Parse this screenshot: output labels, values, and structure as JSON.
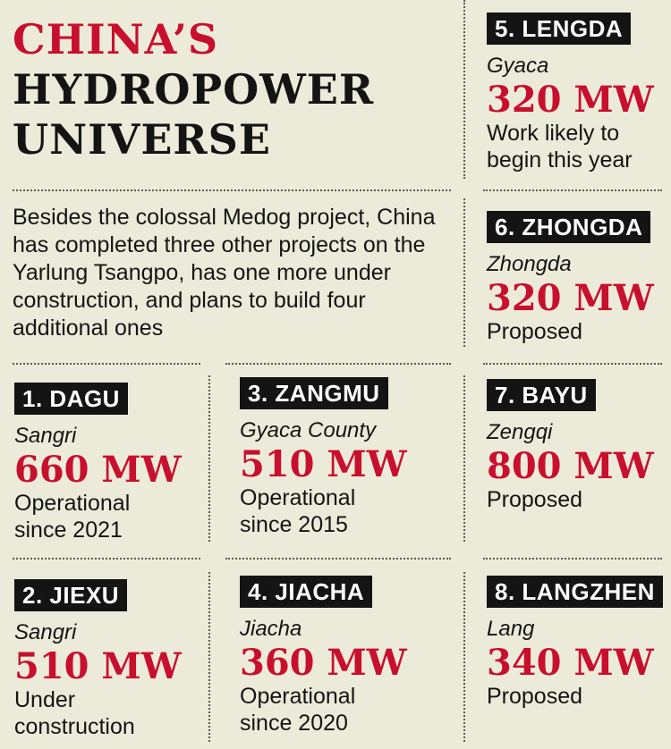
{
  "title": {
    "line1": "CHINA’S",
    "line2": "HYDROPOWER",
    "line3": "UNIVERSE"
  },
  "intro": "Besides the colossal Medog project, China has completed three other projects on the Yarlung Tsangpo, has one more under construction, and plans to build four additional ones",
  "colors": {
    "accent": "#c8102e",
    "badge_bg": "#141414",
    "background": "#ecebd9"
  },
  "projects": [
    {
      "name": "1. DAGU",
      "place": "Sangri",
      "capacity": "660 MW",
      "status": "Operational\nsince 2021"
    },
    {
      "name": "2. JIEXU",
      "place": "Sangri",
      "capacity": "510 MW",
      "status": "Under\nconstruction"
    },
    {
      "name": "3. ZANGMU",
      "place": "Gyaca County",
      "capacity": "510 MW",
      "status": "Operational\nsince 2015"
    },
    {
      "name": "4. JIACHA",
      "place": "Jiacha",
      "capacity": "360 MW",
      "status": "Operational\nsince 2020"
    },
    {
      "name": "5. LENGDA",
      "place": "Gyaca",
      "capacity": "320 MW",
      "status": "Work likely to\nbegin this year"
    },
    {
      "name": "6. ZHONGDA",
      "place": "Zhongda",
      "capacity": "320 MW",
      "status": "Proposed"
    },
    {
      "name": "7. BAYU",
      "place": "Zengqi",
      "capacity": "800 MW",
      "status": "Proposed"
    },
    {
      "name": "8. LANGZHEN",
      "place": "Lang",
      "capacity": "340 MW",
      "status": "Proposed"
    }
  ]
}
